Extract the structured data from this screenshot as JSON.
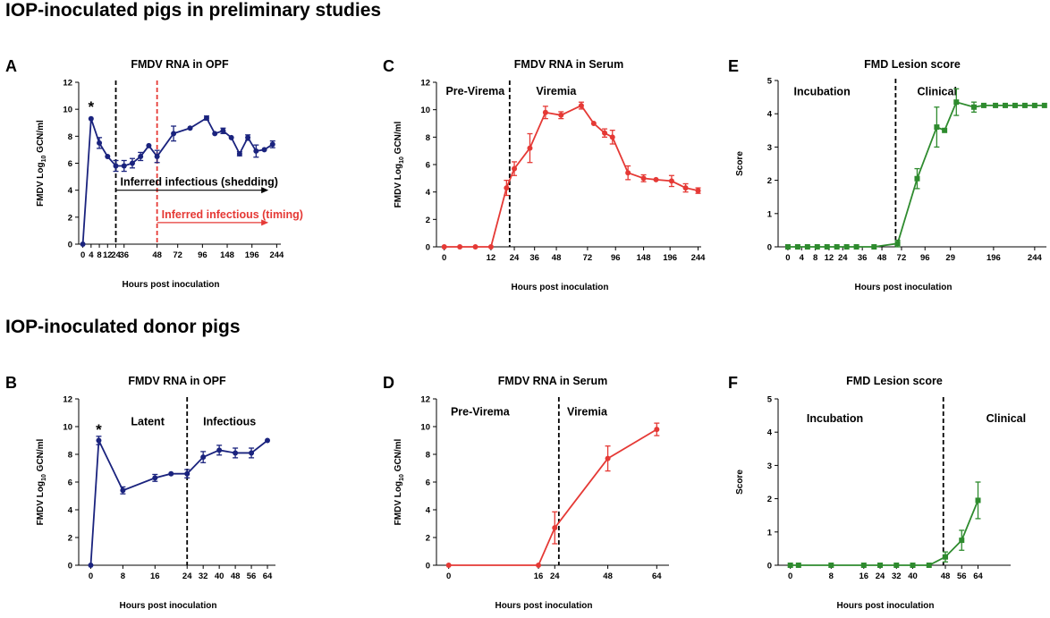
{
  "sections": [
    {
      "title": "IOP-inoculated pigs in preliminary studies"
    },
    {
      "title": "IOP-inoculated donor pigs"
    }
  ],
  "chart_data": [
    {
      "panel_letter": "A",
      "type": "line",
      "title": "FMDV RNA in OPF",
      "xlabel": "Hours post inoculation",
      "ylabel": "FMDV Log10 GCN/ml",
      "ylabel_parts": [
        "FMDV Log",
        "10",
        " GCN/ml"
      ],
      "ylim": [
        0,
        12
      ],
      "yticks": [
        0,
        2,
        4,
        6,
        8,
        10,
        12
      ],
      "xticks": [
        "0",
        "4",
        "8",
        "12",
        "24",
        "36",
        "48",
        "72",
        "96",
        "148",
        "196",
        "244"
      ],
      "color": "#1a237e",
      "marker": "circle",
      "series": [
        {
          "name": "OPF",
          "values": [
            [
              0,
              0,
              0
            ],
            [
              1,
              9.3,
              0
            ],
            [
              2,
              7.5,
              0.4
            ],
            [
              3,
              6.5,
              0
            ],
            [
              4,
              5.8,
              0.4
            ],
            [
              5,
              5.8,
              0.4
            ],
            [
              6,
              6.0,
              0.35
            ],
            [
              7,
              6.5,
              0.3
            ],
            [
              8,
              7.3,
              0
            ],
            [
              9,
              6.5,
              0.45
            ],
            [
              11,
              8.2,
              0.55
            ],
            [
              13,
              8.6,
              0
            ],
            [
              15,
              9.35,
              0.15
            ],
            [
              16,
              8.2,
              0
            ],
            [
              17,
              8.4,
              0.2
            ],
            [
              18,
              7.9,
              0
            ],
            [
              19,
              6.7,
              0.15
            ],
            [
              20,
              7.9,
              0.2
            ],
            [
              21,
              6.9,
              0.45
            ],
            [
              22,
              7.0,
              0
            ],
            [
              23,
              7.4,
              0.25
            ]
          ]
        }
      ],
      "vlines": [
        {
          "x": 4,
          "color": "#000000"
        },
        {
          "x": 9,
          "color": "#e53935"
        }
      ],
      "arrows": [
        {
          "label": "Inferred infectious (shedding)",
          "x_from": 4,
          "x_to": 22.5,
          "y": 4,
          "color": "#000000"
        },
        {
          "label": "Inferred infectious (timing)",
          "x_from": 9,
          "x_to": 22.5,
          "y": 1.6,
          "color": "#e53935"
        }
      ],
      "annotations": [
        {
          "text": "*",
          "x": 1,
          "y": 10.2
        }
      ]
    },
    {
      "panel_letter": "C",
      "type": "line",
      "title": "FMDV RNA in Serum",
      "xlabel": "Hours post inoculation",
      "ylabel": "FMDV Log10 GCN/ml",
      "ylabel_parts": [
        "FMDV Log",
        "10",
        " GCN/ml"
      ],
      "ylim": [
        0,
        12
      ],
      "yticks": [
        0,
        2,
        4,
        6,
        8,
        10,
        12
      ],
      "xticks": [
        "0",
        "12",
        "24",
        "36",
        "48",
        "72",
        "96",
        "148",
        "196",
        "244"
      ],
      "color": "#e53935",
      "marker": "circle",
      "series": [
        {
          "name": "Serum",
          "values": [
            [
              0,
              0,
              0
            ],
            [
              1,
              0,
              0
            ],
            [
              2,
              0,
              0
            ],
            [
              3,
              0,
              0
            ],
            [
              4,
              4.3,
              0.55
            ],
            [
              4.5,
              5.7,
              0.5
            ],
            [
              5.5,
              7.2,
              1.05
            ],
            [
              6.5,
              9.8,
              0.45
            ],
            [
              7.5,
              9.6,
              0.25
            ],
            [
              8.8,
              10.3,
              0.25
            ],
            [
              9.6,
              9.0,
              0
            ],
            [
              10.3,
              8.3,
              0.3
            ],
            [
              10.8,
              8.0,
              0.5
            ],
            [
              11.8,
              5.4,
              0.5
            ],
            [
              12.8,
              5.0,
              0.25
            ],
            [
              13.6,
              4.9,
              0
            ],
            [
              14.6,
              4.8,
              0.4
            ],
            [
              15.5,
              4.3,
              0.3
            ],
            [
              16.3,
              4.1,
              0.2
            ]
          ]
        }
      ],
      "vlines": [
        {
          "x": 4.2,
          "color": "#000000"
        }
      ],
      "annotations": [
        {
          "text": "Pre-Virema",
          "x": 0.1,
          "y": 11.1
        },
        {
          "text": "Viremia",
          "x": 5.9,
          "y": 11.1
        }
      ]
    },
    {
      "panel_letter": "E",
      "type": "line",
      "title": "FMD Lesion score",
      "xlabel": "Hours post inoculation",
      "ylabel": "Score",
      "ylim": [
        0,
        5
      ],
      "yticks": [
        0,
        1,
        2,
        3,
        4,
        5
      ],
      "xticks": [
        "0",
        "4",
        "8",
        "12",
        "24",
        "36",
        "48",
        "72",
        "96",
        "29",
        "196",
        "244"
      ],
      "color": "#2e8b2e",
      "marker": "square",
      "series": [
        {
          "name": "Lesion",
          "values": [
            [
              0,
              0,
              0
            ],
            [
              0.5,
              0,
              0
            ],
            [
              1,
              0,
              0
            ],
            [
              1.5,
              0,
              0
            ],
            [
              2,
              0,
              0
            ],
            [
              2.5,
              0,
              0
            ],
            [
              3,
              0,
              0
            ],
            [
              3.5,
              0,
              0
            ],
            [
              4.4,
              0,
              0
            ],
            [
              5.6,
              0.1,
              0.1
            ],
            [
              6.6,
              2.05,
              0.3
            ],
            [
              7.6,
              3.6,
              0.6
            ],
            [
              8.0,
              3.5,
              0
            ],
            [
              8.6,
              4.35,
              0.4
            ],
            [
              9.5,
              4.2,
              0.15
            ],
            [
              10.0,
              4.25,
              0
            ],
            [
              10.6,
              4.25,
              0
            ],
            [
              11.1,
              4.25,
              0
            ],
            [
              11.6,
              4.25,
              0
            ],
            [
              12.1,
              4.25,
              0
            ],
            [
              12.6,
              4.25,
              0
            ],
            [
              13.1,
              4.25,
              0
            ]
          ]
        }
      ],
      "vlines": [
        {
          "x": 5.5,
          "color": "#000000"
        }
      ],
      "annotations": [
        {
          "text": "Incubation",
          "x": 0.3,
          "y": 4.55
        },
        {
          "text": "Clinical",
          "x": 6.6,
          "y": 4.55
        }
      ]
    },
    {
      "panel_letter": "B",
      "type": "line",
      "title": "FMDV RNA in OPF",
      "xlabel": "Hours post inoculation",
      "ylabel": "FMDV Log10 GCN/ml",
      "ylabel_parts": [
        "FMDV Log",
        "10",
        " GCN/ml"
      ],
      "ylim": [
        0,
        12
      ],
      "yticks": [
        0,
        2,
        4,
        6,
        8,
        10,
        12
      ],
      "xticks": [
        "0",
        "8",
        "16",
        "24",
        "32",
        "40",
        "48",
        "56",
        "64"
      ],
      "color": "#1a237e",
      "marker": "circle",
      "series": [
        {
          "name": "OPF",
          "values": [
            [
              0,
              0,
              0
            ],
            [
              2,
              9.0,
              0.3
            ],
            [
              8,
              5.4,
              0.25
            ],
            [
              16,
              6.3,
              0.25
            ],
            [
              20,
              6.6,
              0
            ],
            [
              24,
              6.6,
              0.3
            ],
            [
              28,
              7.8,
              0.4
            ],
            [
              32,
              8.3,
              0.35
            ],
            [
              36,
              8.1,
              0.35
            ],
            [
              40,
              8.1,
              0.35
            ],
            [
              44,
              9.0,
              0
            ]
          ]
        }
      ],
      "vlines": [
        {
          "x": 24,
          "color": "#000000"
        }
      ],
      "annotations": [
        {
          "text": "*",
          "x": 2,
          "y": 9.8
        },
        {
          "text": "Latent",
          "x": 10,
          "y": 10.1
        },
        {
          "text": "Infectious",
          "x": 28,
          "y": 10.1
        }
      ]
    },
    {
      "panel_letter": "D",
      "type": "line",
      "title": "FMDV RNA in Serum",
      "xlabel": "Hours post inoculation",
      "ylabel": "FMDV Log10 GCN/ml",
      "ylabel_parts": [
        "FMDV Log",
        "10",
        " GCN/ml"
      ],
      "ylim": [
        0,
        12
      ],
      "yticks": [
        0,
        2,
        4,
        6,
        8,
        10,
        12
      ],
      "xticks": [
        "0",
        "16",
        "24",
        "48",
        "64"
      ],
      "color": "#e53935",
      "marker": "circle",
      "series": [
        {
          "name": "Serum",
          "values": [
            [
              0,
              0,
              0
            ],
            [
              22,
              0,
              0
            ],
            [
              26,
              2.7,
              1.15
            ],
            [
              39,
              7.7,
              0.9
            ],
            [
              51,
              9.8,
              0.45
            ]
          ]
        }
      ],
      "vlines": [
        {
          "x": 27,
          "color": "#000000"
        }
      ],
      "annotations": [
        {
          "text": "Pre-Virema",
          "x": 0.5,
          "y": 10.8
        },
        {
          "text": "Viremia",
          "x": 29,
          "y": 10.8
        }
      ]
    },
    {
      "panel_letter": "F",
      "type": "line",
      "title": "FMD Lesion score",
      "xlabel": "Hours post inoculation",
      "ylabel": "Score",
      "ylim": [
        0,
        5
      ],
      "yticks": [
        0,
        1,
        2,
        3,
        4,
        5
      ],
      "xticks": [
        "0",
        "8",
        "16",
        "24",
        "32",
        "40",
        "48",
        "56",
        "64"
      ],
      "color": "#2e8b2e",
      "marker": "square",
      "series": [
        {
          "name": "Lesion",
          "values": [
            [
              0,
              0,
              0
            ],
            [
              2,
              0,
              0
            ],
            [
              10,
              0,
              0
            ],
            [
              18,
              0,
              0
            ],
            [
              22,
              0,
              0
            ],
            [
              26,
              0,
              0
            ],
            [
              30,
              0,
              0
            ],
            [
              34,
              0,
              0
            ],
            [
              38,
              0.25,
              0.15
            ],
            [
              42,
              0.75,
              0.3
            ],
            [
              46,
              1.95,
              0.55
            ]
          ]
        }
      ],
      "vlines": [
        {
          "x": 37.5,
          "color": "#000000"
        }
      ],
      "annotations": [
        {
          "text": "Incubation",
          "x": 4,
          "y": 4.3
        },
        {
          "text": "Clinical",
          "x": 48,
          "y": 4.3
        }
      ]
    }
  ]
}
